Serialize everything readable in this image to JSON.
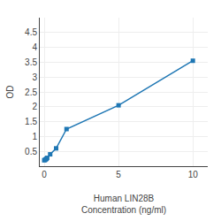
{
  "chart_data": {
    "type": "line",
    "x": [
      0.0,
      0.05,
      0.1,
      0.15,
      0.2,
      0.4,
      0.8,
      1.5,
      5.0,
      10.0
    ],
    "values": [
      0.2,
      0.21,
      0.23,
      0.25,
      0.28,
      0.4,
      0.6,
      1.25,
      2.05,
      3.55
    ],
    "marker": "square",
    "xlabel": "Human LIN28B\nConcentration (ng/ml)",
    "ylabel": "OD",
    "xlim": [
      -0.3,
      11
    ],
    "ylim": [
      0,
      5
    ],
    "xticks": [
      0,
      5,
      10
    ],
    "yticks": [
      0.5,
      1.0,
      1.5,
      2.0,
      2.5,
      3.0,
      3.5,
      4.0,
      4.5
    ],
    "grid": true
  }
}
